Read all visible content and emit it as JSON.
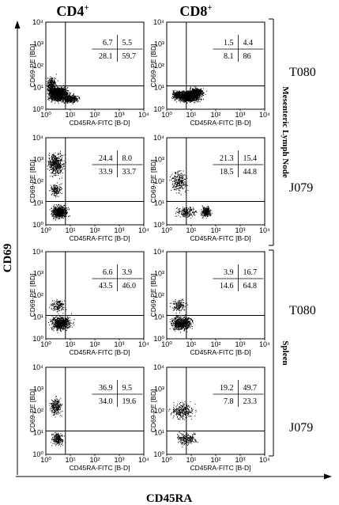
{
  "column_headers": [
    {
      "label": "CD4",
      "sup": "+"
    },
    {
      "label": "CD8",
      "sup": "+"
    }
  ],
  "axis_titles": {
    "y": "CD69",
    "x": "CD45RA"
  },
  "plot_axes": {
    "x_label": "CD45RA-FITC [B-D]",
    "y_label": "CD69-PE [BD]",
    "ticks": [
      "10⁰",
      "10¹",
      "10²",
      "10³",
      "10⁴"
    ],
    "log_scale": true,
    "range": [
      0,
      4
    ]
  },
  "tissues": [
    {
      "label": "Mesenteric Lymph Node",
      "rows": [
        0,
        1
      ]
    },
    {
      "label": "Spleen",
      "rows": [
        2,
        3
      ]
    }
  ],
  "samples": [
    "T080",
    "J079",
    "T080",
    "J079"
  ],
  "panels": [
    {
      "row": 0,
      "col": 0,
      "quadrants": {
        "ul": "6.7",
        "ur": "5.5",
        "ll": "28.1",
        "lr": "59.7"
      },
      "density": "dense-ll"
    },
    {
      "row": 0,
      "col": 1,
      "quadrants": {
        "ul": "1.5",
        "ur": "4.4",
        "ll": "8.1",
        "lr": "86"
      },
      "density": "dense-lr"
    },
    {
      "row": 1,
      "col": 0,
      "quadrants": {
        "ul": "24.4",
        "ur": "8.0",
        "ll": "33.9",
        "lr": "33.7"
      },
      "density": "split"
    },
    {
      "row": 1,
      "col": 1,
      "quadrants": {
        "ul": "21.3",
        "ur": "15.4",
        "ll": "18.5",
        "lr": "44.8"
      },
      "density": "sparse"
    },
    {
      "row": 2,
      "col": 0,
      "quadrants": {
        "ul": "6.6",
        "ur": "3.9",
        "ll": "43.5",
        "lr": "46.0"
      },
      "density": "medium"
    },
    {
      "row": 2,
      "col": 1,
      "quadrants": {
        "ul": "3.9",
        "ur": "16.7",
        "ll": "14.6",
        "lr": "64.8"
      },
      "density": "medium"
    },
    {
      "row": 3,
      "col": 0,
      "quadrants": {
        "ul": "36.9",
        "ur": "9.5",
        "ll": "34.0",
        "lr": "19.6"
      },
      "density": "sparse-split"
    },
    {
      "row": 3,
      "col": 1,
      "quadrants": {
        "ul": "19.2",
        "ur": "49.7",
        "ll": "7.8",
        "lr": "23.3"
      },
      "density": "upper"
    }
  ]
}
